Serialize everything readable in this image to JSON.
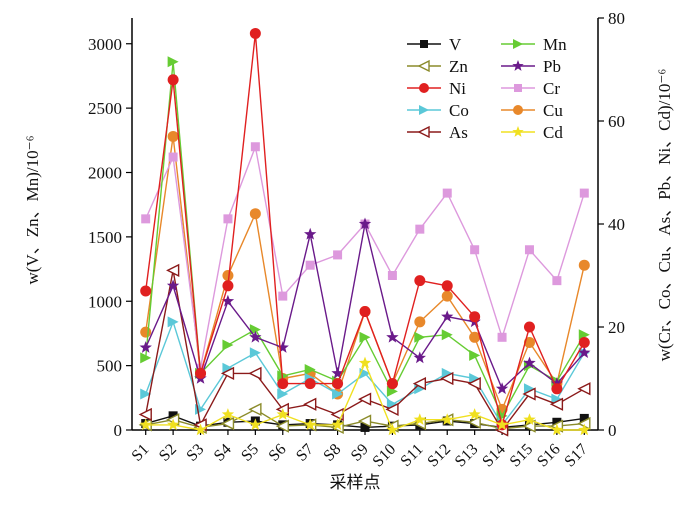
{
  "chart_data": {
    "type": "line",
    "xlabel": "采样点",
    "ylabel_left": "w(V、Zn、Mn)/10⁻⁶",
    "ylabel_right": "w(Cr、Co、Cu、As、Pb、Ni、Cd)/10⁻⁶",
    "ylim_left": [
      0,
      3200
    ],
    "ylim_right": [
      0,
      80
    ],
    "yticks_left": [
      0,
      500,
      1000,
      1500,
      2000,
      2500,
      3000
    ],
    "yticks_right": [
      0,
      20,
      40,
      60,
      80
    ],
    "legend_position": "top-right",
    "categories": [
      "S1",
      "S2",
      "S3",
      "S4",
      "S5",
      "S6",
      "S7",
      "S8",
      "S9",
      "S10",
      "S11",
      "S12",
      "S13",
      "S14",
      "S15",
      "S16",
      "S17"
    ],
    "series": [
      {
        "name": "Cu",
        "axis": "right",
        "color": "#e8882a",
        "marker": "circle",
        "values": [
          19,
          57,
          11,
          30,
          42,
          10,
          11,
          7,
          23,
          9,
          21,
          26,
          18,
          4,
          17,
          9,
          32
        ]
      },
      {
        "name": "Cr",
        "axis": "right",
        "color": "#dd99dd",
        "marker": "square",
        "values": [
          41,
          53,
          12,
          41,
          55,
          26,
          32,
          34,
          40,
          30,
          39,
          46,
          35,
          18,
          35,
          29,
          46
        ]
      },
      {
        "name": "V",
        "axis": "left",
        "color": "#111111",
        "marker": "square",
        "values": [
          50,
          110,
          30,
          60,
          70,
          40,
          50,
          40,
          20,
          30,
          40,
          70,
          50,
          20,
          40,
          60,
          90
        ]
      },
      {
        "name": "Mn",
        "axis": "left",
        "color": "#66cc33",
        "marker": "triangle-right",
        "values": [
          560,
          2860,
          440,
          660,
          780,
          420,
          470,
          380,
          720,
          300,
          720,
          740,
          580,
          110,
          500,
          380,
          740
        ]
      },
      {
        "name": "Zn",
        "axis": "left",
        "color": "#8b8b2a",
        "marker": "triangle-left",
        "values": [
          40,
          80,
          20,
          50,
          160,
          30,
          40,
          20,
          70,
          30,
          50,
          80,
          60,
          10,
          30,
          30,
          50
        ]
      },
      {
        "name": "Co",
        "axis": "right",
        "color": "#5bc8d8",
        "marker": "triangle-right",
        "values": [
          7,
          21,
          4,
          12,
          15,
          7,
          10,
          7,
          11,
          5,
          8,
          11,
          10,
          1,
          8,
          6,
          15
        ]
      },
      {
        "name": "As",
        "axis": "right",
        "color": "#8b1a1a",
        "marker": "triangle-left",
        "values": [
          3,
          31,
          1,
          11,
          11,
          4,
          5,
          3,
          6,
          4,
          9,
          10,
          9,
          0,
          7,
          5,
          8
        ]
      },
      {
        "name": "Pb",
        "axis": "right",
        "color": "#6a1a8a",
        "marker": "star",
        "values": [
          16,
          28,
          10,
          25,
          18,
          16,
          38,
          11,
          40,
          18,
          14,
          22,
          21,
          8,
          13,
          9,
          15
        ]
      },
      {
        "name": "Ni",
        "axis": "right",
        "color": "#e02020",
        "marker": "circle",
        "values": [
          27,
          68,
          11,
          28,
          77,
          9,
          9,
          9,
          23,
          9,
          29,
          28,
          22,
          1,
          20,
          8,
          17
        ]
      },
      {
        "name": "Cd",
        "axis": "right",
        "color": "#f0e020",
        "marker": "star",
        "values": [
          1,
          1,
          0,
          3,
          1,
          3,
          1,
          1,
          13,
          0,
          2,
          2,
          3,
          1,
          2,
          0,
          0
        ]
      }
    ],
    "legend_order": [
      "V",
      "Mn",
      "Zn",
      "Pb",
      "Ni",
      "Cr",
      "Co",
      "Cu",
      "As",
      "Cd"
    ]
  }
}
